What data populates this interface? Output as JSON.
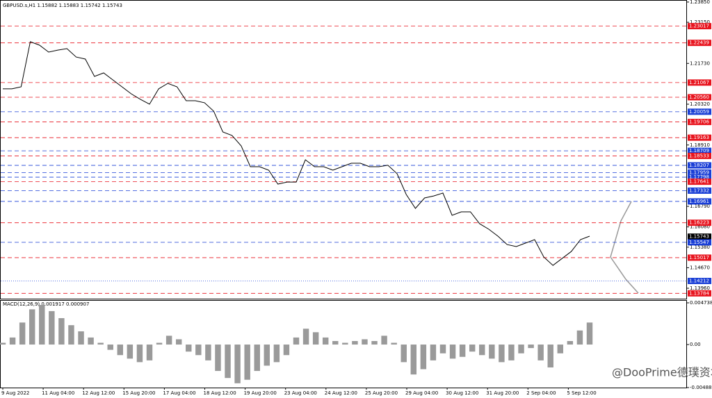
{
  "chart_data": [
    {
      "type": "line",
      "title": "GBPUSD.s,H1  1.15882 1.15883 1.15742 1.15743",
      "color": "#000000",
      "values": [
        1.2085,
        1.2085,
        1.2092,
        1.2248,
        1.2236,
        1.2212,
        1.2219,
        1.2224,
        1.2195,
        1.2188,
        1.2128,
        1.214,
        1.2116,
        1.2092,
        1.2068,
        1.2049,
        1.2032,
        1.2085,
        1.2104,
        1.2092,
        1.2044,
        1.2044,
        1.2037,
        1.2008,
        1.1936,
        1.1924,
        1.1888,
        1.1816,
        1.1816,
        1.1804,
        1.1756,
        1.1763,
        1.1763,
        1.184,
        1.1816,
        1.1816,
        1.1804,
        1.1816,
        1.1828,
        1.1828,
        1.1816,
        1.1816,
        1.1821,
        1.1792,
        1.172,
        1.1672,
        1.1708,
        1.1715,
        1.1725,
        1.1648,
        1.166,
        1.166,
        1.1619,
        1.16,
        1.1576,
        1.1547,
        1.154,
        1.1552,
        1.1564,
        1.1504,
        1.1475,
        1.1499,
        1.1523,
        1.1564,
        1.1576
      ],
      "ylim": [
        1.136,
        1.2392
      ],
      "yticks": [
        {
          "value": 1.2385,
          "label": "1.23850"
        },
        {
          "value": 1.2315,
          "label": "1.23150"
        },
        {
          "value": 1.2173,
          "label": "1.21730"
        },
        {
          "value": 1.2032,
          "label": "1.20320"
        },
        {
          "value": 1.1891,
          "label": "1.18910"
        },
        {
          "value": 1.1679,
          "label": "1.16790"
        },
        {
          "value": 1.1608,
          "label": "1.16080"
        },
        {
          "value": 1.1538,
          "label": "1.15380"
        },
        {
          "value": 1.1467,
          "label": "1.14670"
        },
        {
          "value": 1.1396,
          "label": "1.13960"
        }
      ],
      "levels": [
        {
          "value": 1.23017,
          "color": "#e8141e",
          "style": "dashed"
        },
        {
          "value": 1.22439,
          "color": "#e8141e",
          "style": "dashed"
        },
        {
          "value": 1.21067,
          "color": "#e8141e",
          "style": "dashed"
        },
        {
          "value": 1.2056,
          "label": "1.20560",
          "color": "#e8141e",
          "style": "dashed"
        },
        {
          "value": 1.20059,
          "color": "#1a3fd6",
          "style": "dashed"
        },
        {
          "value": 1.19706,
          "color": "#e8141e",
          "style": "dashed"
        },
        {
          "value": 1.19163,
          "color": "#e8141e",
          "style": "dashed"
        },
        {
          "value": 1.18709,
          "color": "#1a3fd6",
          "style": "dashed"
        },
        {
          "value": 1.18533,
          "color": "#e8141e",
          "style": "dashed"
        },
        {
          "value": 1.18207,
          "color": "#1a3fd6",
          "style": "dashed"
        },
        {
          "value": 1.17959,
          "color": "#1a3fd6",
          "style": "dashed"
        },
        {
          "value": 1.17798,
          "color": "#1a3fd6",
          "style": "dashed"
        },
        {
          "value": 1.17641,
          "color": "#e8141e",
          "style": "dashed"
        },
        {
          "value": 1.17332,
          "color": "#1a3fd6",
          "style": "dashed"
        },
        {
          "value": 1.16961,
          "color": "#1a3fd6",
          "style": "dashed"
        },
        {
          "value": 1.16223,
          "color": "#e8141e",
          "style": "dashed"
        },
        {
          "value": 1.15743,
          "color": "#000000",
          "style": "none"
        },
        {
          "value": 1.15547,
          "color": "#1a3fd6",
          "style": "dashed"
        },
        {
          "value": 1.15017,
          "color": "#e8141e",
          "style": "dashed"
        },
        {
          "value": 1.14212,
          "color": "#1a3fd6",
          "style": "dotted"
        },
        {
          "value": 1.13784,
          "color": "#e8141e",
          "style": "dashed"
        }
      ],
      "time_labels": [
        "9 Aug 2022",
        "11 Aug 04:00",
        "12 Aug 12:00",
        "15 Aug 20:00",
        "17 Aug 04:00",
        "18 Aug 12:00",
        "19 Aug 20:00",
        "23 Aug 04:00",
        "24 Aug 12:00",
        "25 Aug 20:00",
        "29 Aug 04:00",
        "30 Aug 12:00",
        "31 Aug 20:00",
        "2 Sep 04:00",
        "5 Sep 12:00"
      ]
    },
    {
      "type": "bar",
      "title": "MACD(12,26,9) 0.001917 0.000907",
      "color": "#9a9a9a",
      "values": [
        0.0002,
        0.0008,
        0.0025,
        0.004,
        0.0045,
        0.0038,
        0.003,
        0.0022,
        0.0015,
        0.0008,
        0.0002,
        -0.0006,
        -0.0012,
        -0.0016,
        -0.002,
        -0.0018,
        0.0002,
        0.001,
        0.0006,
        -0.0008,
        -0.0012,
        -0.0018,
        -0.003,
        -0.0038,
        -0.0044,
        -0.004,
        -0.003,
        -0.0024,
        -0.002,
        -0.0012,
        0.0008,
        0.0018,
        0.0014,
        0.0008,
        0.0004,
        0.0002,
        0.0004,
        0.0006,
        0.0004,
        0.001,
        0.0002,
        -0.002,
        -0.0034,
        -0.0028,
        -0.0018,
        -0.001,
        -0.0016,
        -0.0014,
        -0.0008,
        -0.0012,
        -0.0016,
        -0.002,
        -0.0018,
        -0.001,
        -0.0004,
        -0.0018,
        -0.0026,
        -0.001,
        0.0004,
        0.0016,
        0.0025
      ],
      "ylim": [
        -0.004889,
        0.004738
      ],
      "yticks": [
        0.004738,
        {
          "value": 0,
          "label": "0.00"
        },
        -0.004889
      ]
    }
  ],
  "watermark": "@DooPrime德璞资本"
}
